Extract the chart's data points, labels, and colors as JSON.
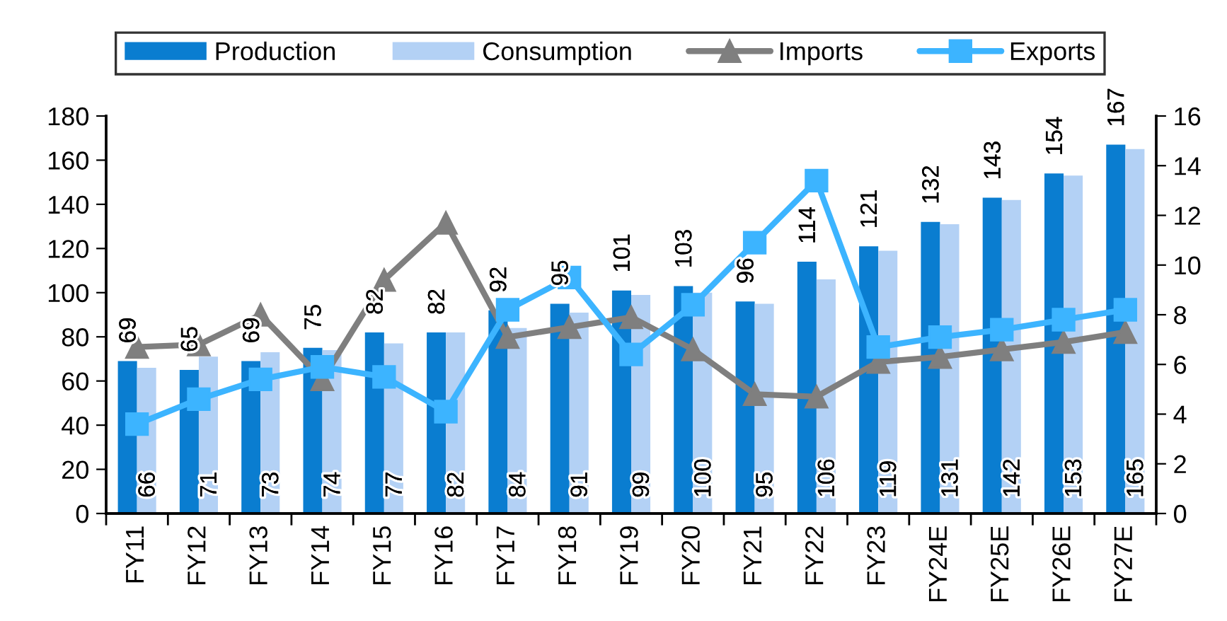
{
  "chart_data": {
    "type": "bar",
    "categories": [
      "FY11",
      "FY12",
      "FY13",
      "FY14",
      "FY15",
      "FY16",
      "FY17",
      "FY18",
      "FY19",
      "FY20",
      "FY21",
      "FY22",
      "FY23",
      "FY24E",
      "FY25E",
      "FY26E",
      "FY27E"
    ],
    "series": [
      {
        "name": "Production",
        "color": "#0a7dd0",
        "data_labels": true,
        "values": [
          69,
          65,
          69,
          75,
          82,
          82,
          92,
          95,
          101,
          103,
          96,
          114,
          121,
          132,
          143,
          154,
          167
        ]
      },
      {
        "name": "Consumption",
        "color": "#b3d1f5",
        "data_labels": true,
        "values": [
          66,
          71,
          73,
          74,
          77,
          82,
          84,
          91,
          99,
          100,
          95,
          106,
          119,
          131,
          142,
          153,
          165
        ]
      },
      {
        "name": "Imports",
        "type": "line",
        "axis": "y2",
        "color": "#7f7f7f",
        "marker": "triangle",
        "line_style": "solid",
        "values": [
          6.7,
          6.8,
          8.0,
          5.4,
          9.4,
          11.7,
          7.1,
          7.5,
          7.9,
          6.6,
          4.8,
          4.7,
          6.1,
          6.3,
          6.6,
          6.9,
          7.3
        ]
      },
      {
        "name": "Exports",
        "type": "line",
        "axis": "y2",
        "color": "#3cb4ff",
        "marker": "square",
        "line_style": "solid",
        "values": [
          3.6,
          4.6,
          5.4,
          5.9,
          5.5,
          4.1,
          8.2,
          9.5,
          6.4,
          8.4,
          10.9,
          13.4,
          6.7,
          7.1,
          7.4,
          7.8,
          8.2
        ]
      }
    ],
    "ylim": [
      0,
      180
    ],
    "yticks": [
      0,
      20,
      40,
      60,
      80,
      100,
      120,
      140,
      160,
      180
    ],
    "y2lim": [
      0,
      16
    ],
    "y2ticks": [
      0,
      2,
      4,
      6,
      8,
      10,
      12,
      14,
      16
    ],
    "grid": false,
    "legend": "top"
  }
}
